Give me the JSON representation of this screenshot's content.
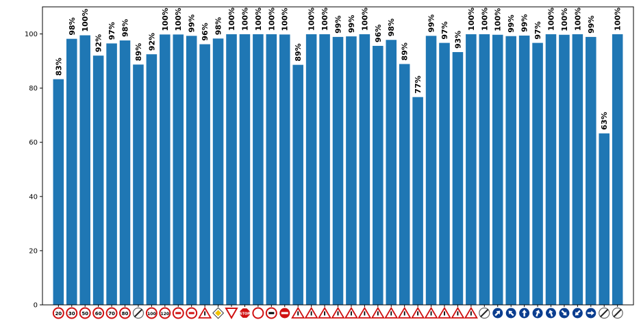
{
  "chart_data": {
    "type": "bar",
    "title": "",
    "xlabel": "",
    "ylabel": "",
    "ylim": [
      0,
      110
    ],
    "yticks": [
      0,
      20,
      40,
      60,
      80,
      100
    ],
    "grid": false,
    "bar_color": "#1f77b4",
    "label_suffix": "%",
    "x_tick_style": "traffic-sign-icons",
    "categories": [
      "speed-limit-20",
      "speed-limit-30",
      "speed-limit-50",
      "speed-limit-60",
      "speed-limit-70",
      "speed-limit-80",
      "end-speed-limit-80",
      "speed-limit-100",
      "speed-limit-120",
      "no-passing",
      "no-passing-trucks",
      "right-of-way-intersection",
      "priority-road",
      "yield",
      "stop",
      "no-vehicles",
      "no-trucks",
      "no-entry",
      "general-caution",
      "dangerous-curve-left",
      "dangerous-curve-right",
      "double-curve",
      "bumpy-road",
      "slippery-road",
      "road-narrows-right",
      "road-work",
      "traffic-signals",
      "pedestrians",
      "children-crossing",
      "bicycles-crossing",
      "ice-snow",
      "wild-animals",
      "end-all-limits",
      "turn-right-ahead",
      "turn-left-ahead",
      "ahead-only",
      "straight-or-right",
      "straight-or-left",
      "keep-right",
      "keep-left",
      "roundabout",
      "end-no-passing",
      "end-no-passing-trucks"
    ],
    "labels": [
      "83%",
      "98%",
      "100%",
      "92%",
      "97%",
      "98%",
      "89%",
      "92%",
      "100%",
      "100%",
      "99%",
      "96%",
      "98%",
      "100%",
      "100%",
      "100%",
      "100%",
      "100%",
      "89%",
      "100%",
      "100%",
      "99%",
      "99%",
      "100%",
      "96%",
      "98%",
      "89%",
      "77%",
      "99%",
      "97%",
      "93%",
      "100%",
      "100%",
      "100%",
      "99%",
      "99%",
      "97%",
      "100%",
      "100%",
      "100%",
      "99%",
      "63%",
      "100%"
    ],
    "values": [
      83.3,
      98.2,
      99.5,
      92.0,
      96.5,
      97.6,
      88.7,
      92.5,
      99.8,
      99.8,
      99.3,
      96.2,
      98.3,
      99.9,
      99.9,
      99.9,
      99.9,
      99.8,
      88.6,
      99.9,
      99.9,
      98.9,
      99.1,
      99.9,
      95.6,
      97.8,
      88.9,
      76.7,
      99.3,
      96.7,
      93.3,
      99.9,
      99.9,
      99.7,
      99.2,
      99.4,
      96.7,
      99.9,
      99.7,
      99.9,
      98.9,
      63.3,
      99.9
    ]
  }
}
